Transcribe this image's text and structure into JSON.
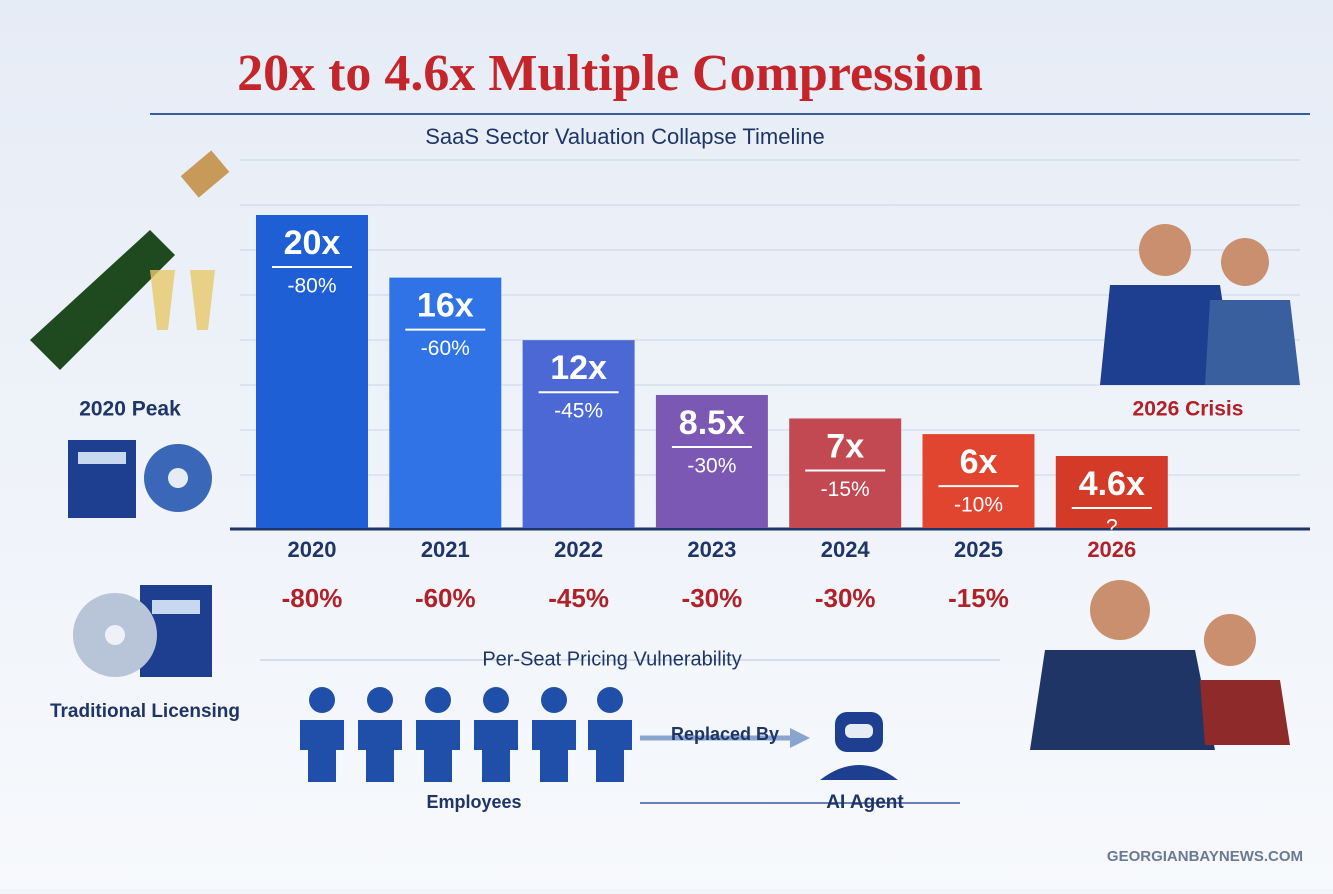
{
  "chart_data": {
    "type": "bar",
    "title": "20x to 4.6x Multiple Compression",
    "subtitle": "SaaS Sector Valuation Collapse Timeline",
    "categories": [
      "2020",
      "2021",
      "2022",
      "2023",
      "2024",
      "2025",
      "2026"
    ],
    "values": [
      20,
      16,
      12,
      8.5,
      7,
      6,
      4.6
    ],
    "value_labels": [
      "20x",
      "16x",
      "12x",
      "8.5x",
      "7x",
      "6x",
      "4.6x"
    ],
    "bar_notes": [
      "-80%",
      "-60%",
      "-45%",
      "-30%",
      "-15%",
      "-10%",
      "?"
    ],
    "row_labels": [
      "-80%",
      "-60%",
      "-45%",
      "-30%",
      "-30%",
      "-15%"
    ],
    "colors": [
      "#1f5fd6",
      "#2f73e6",
      "#4b68d4",
      "#7a58b4",
      "#c24852",
      "#e2452f",
      "#d43a28"
    ],
    "annotations": [
      "2020 Peak",
      "2026 Crisis",
      "Traditional Licensing",
      "Per-Seat Pricing Vulnerability",
      "Replaced By",
      "Employees",
      "AI Agent"
    ],
    "source": "GEORGIANBAYNEWS.COM"
  }
}
